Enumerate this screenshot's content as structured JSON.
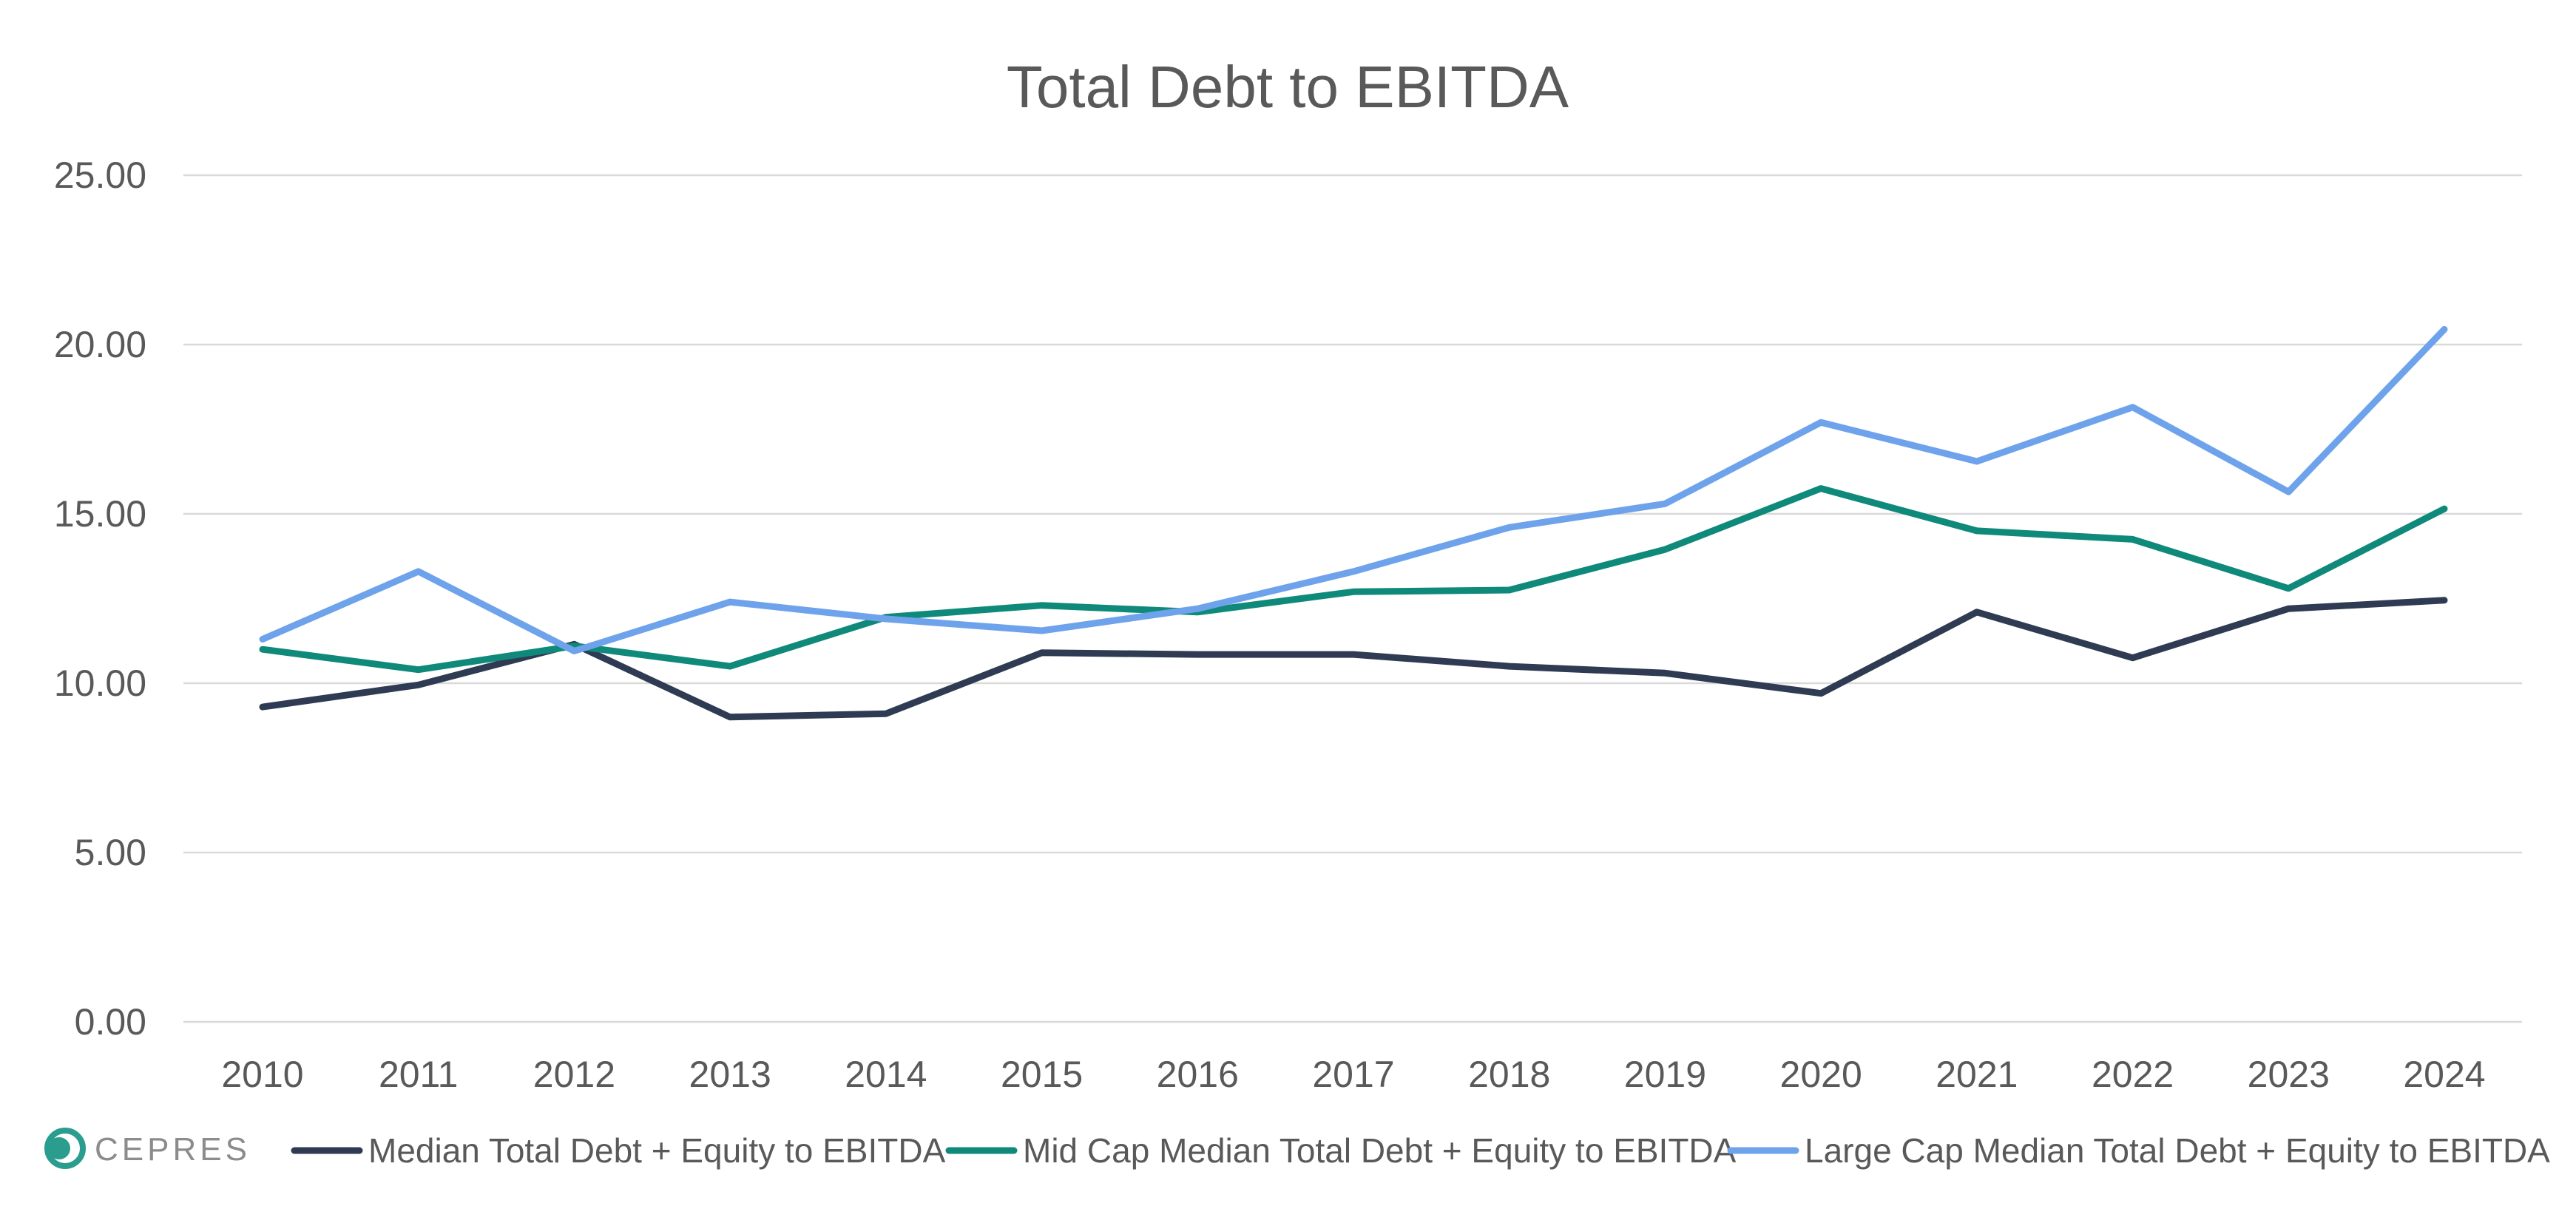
{
  "chart_data": {
    "type": "line",
    "title": "Total Debt to EBITDA",
    "xlabel": "",
    "ylabel": "",
    "x": [
      "2010",
      "2011",
      "2012",
      "2013",
      "2014",
      "2015",
      "2016",
      "2017",
      "2018",
      "2019",
      "2020",
      "2021",
      "2022",
      "2023",
      "2024"
    ],
    "ylim": [
      0,
      25
    ],
    "yticks": [
      "0.00",
      "5.00",
      "10.00",
      "15.00",
      "20.00",
      "25.00"
    ],
    "grid": true,
    "legend_position": "bottom",
    "series": [
      {
        "name": "Median Total Debt + Equity to EBITDA",
        "color": "#2f3b52",
        "values": [
          9.3,
          9.95,
          11.15,
          9.0,
          9.1,
          10.9,
          10.85,
          10.85,
          10.5,
          10.3,
          9.7,
          12.1,
          10.75,
          12.2,
          12.45
        ]
      },
      {
        "name": "Mid Cap Median Total Debt + Equity to EBITDA",
        "color": "#0f8a7a",
        "values": [
          11.0,
          10.4,
          11.1,
          10.5,
          11.95,
          12.3,
          12.1,
          12.7,
          12.75,
          13.95,
          15.75,
          14.5,
          14.25,
          12.8,
          15.15
        ]
      },
      {
        "name": "Large Cap Median Total Debt + Equity to EBITDA",
        "color": "#6ea3ec",
        "values": [
          11.3,
          13.3,
          10.95,
          12.4,
          11.9,
          11.55,
          12.2,
          13.3,
          14.6,
          15.3,
          17.7,
          16.55,
          18.15,
          15.65,
          20.45
        ]
      }
    ]
  },
  "logo": {
    "text": "CEPRES",
    "color": "#2a9d8f"
  }
}
